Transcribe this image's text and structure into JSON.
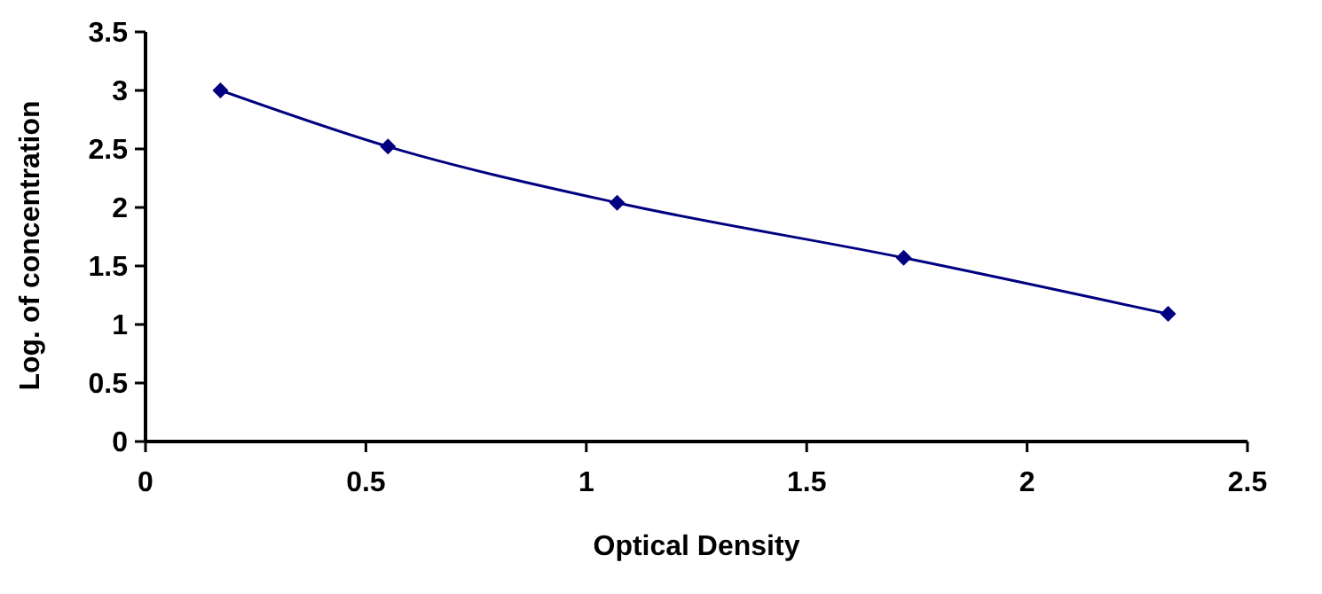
{
  "chart_data": {
    "type": "line",
    "xlabel": "Optical Density",
    "ylabel": "Log. of concentration",
    "x": [
      0.17,
      0.55,
      1.07,
      1.72,
      2.32
    ],
    "series": [
      {
        "color": "#000080",
        "values": [
          3.0,
          2.52,
          2.04,
          1.57,
          1.09
        ]
      }
    ],
    "xlim": [
      0,
      2.5
    ],
    "xticks": [
      0,
      0.5,
      1,
      1.5,
      2,
      2.5
    ],
    "ylim": [
      0,
      3.5
    ],
    "yticks": [
      0,
      0.5,
      1,
      1.5,
      2,
      2.5,
      3,
      3.5
    ],
    "grid": false,
    "marker": "diamond",
    "line_style": "solid"
  }
}
